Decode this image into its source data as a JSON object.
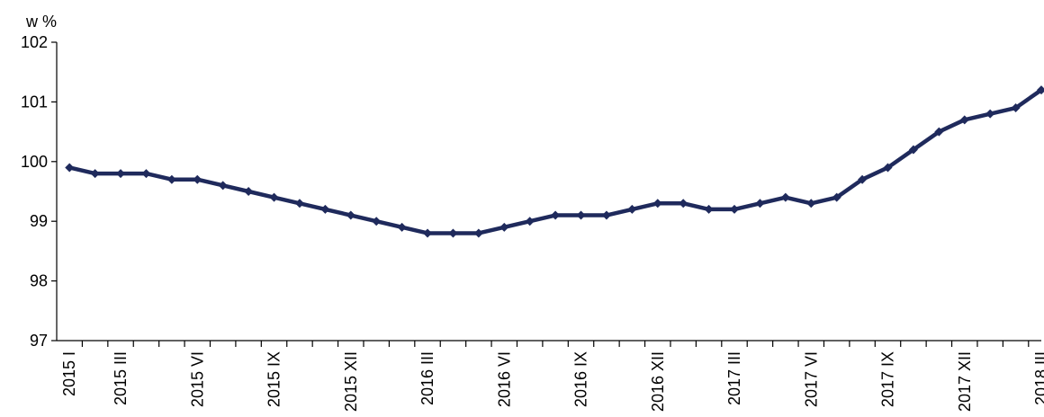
{
  "chart_data": {
    "type": "line",
    "title": "",
    "xlabel": "",
    "ylabel": "",
    "unit_label": "w %",
    "ylim": [
      97,
      102
    ],
    "yticks": [
      97,
      98,
      99,
      100,
      101,
      102
    ],
    "grid": false,
    "colors": {
      "line": "#1f2a5c",
      "axis": "#000000"
    },
    "x": [
      "2015 I",
      "2015 II",
      "2015 III",
      "2015 IV",
      "2015 V",
      "2015 VI",
      "2015 VII",
      "2015 VIII",
      "2015 IX",
      "2015 X",
      "2015 XI",
      "2015 XII",
      "2016 I",
      "2016 II",
      "2016 III",
      "2016 IV",
      "2016 V",
      "2016 VI",
      "2016 VII",
      "2016 VIII",
      "2016 IX",
      "2016 X",
      "2016 XI",
      "2016 XII",
      "2017 I",
      "2017 II",
      "2017 III",
      "2017 IV",
      "2017 V",
      "2017 VI",
      "2017 VII",
      "2017 VIII",
      "2017 IX",
      "2017 X",
      "2017 XI",
      "2017 XII",
      "2018 I",
      "2018 II",
      "2018 III"
    ],
    "x_tick_labels": [
      "2015 I",
      "2015 III",
      "2015 VI",
      "2015 IX",
      "2015 XII",
      "2016 III",
      "2016 VI",
      "2016 IX",
      "2016 XII",
      "2017 III",
      "2017 VI",
      "2017 IX",
      "2017 XII",
      "2018 III"
    ],
    "series": [
      {
        "values": [
          99.9,
          99.8,
          99.8,
          99.8,
          99.7,
          99.7,
          99.6,
          99.5,
          99.4,
          99.3,
          99.2,
          99.1,
          99.0,
          98.9,
          98.8,
          98.8,
          98.8,
          98.9,
          99.0,
          99.1,
          99.1,
          99.1,
          99.2,
          99.3,
          99.3,
          99.2,
          99.2,
          99.3,
          99.4,
          99.3,
          99.4,
          99.7,
          99.9,
          100.2,
          100.5,
          100.7,
          100.8,
          100.9,
          101.2
        ]
      }
    ]
  }
}
